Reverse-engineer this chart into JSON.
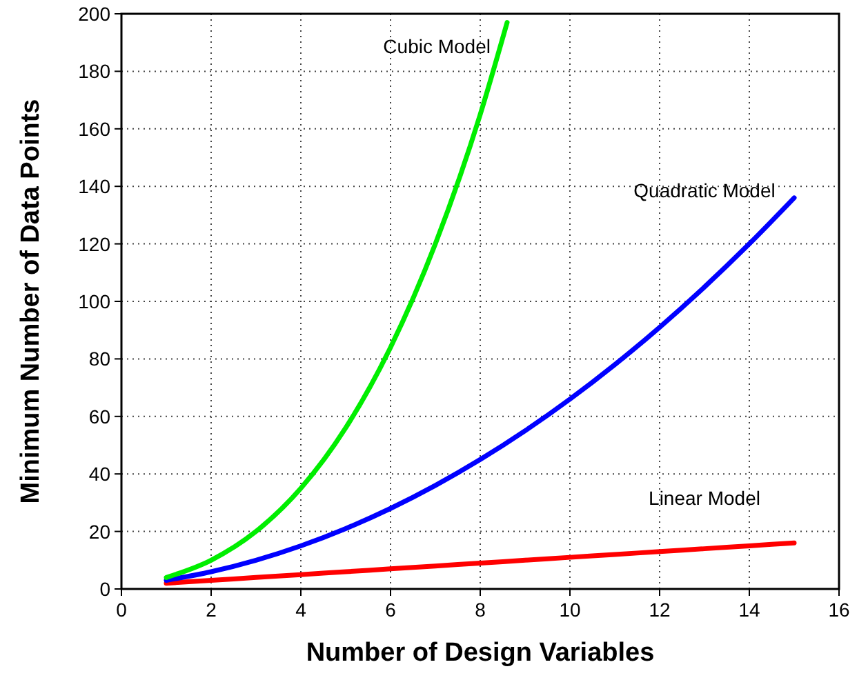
{
  "chart_data": {
    "type": "line",
    "xlabel": "Number of Design Variables",
    "ylabel": "Minimum Number of Data Points",
    "xlim": [
      0,
      16
    ],
    "xticks": [
      0,
      2,
      4,
      6,
      8,
      10,
      12,
      14,
      16
    ],
    "ylim": [
      0,
      200
    ],
    "yticks": [
      0,
      20,
      40,
      60,
      80,
      100,
      120,
      140,
      160,
      180,
      200
    ],
    "grid": true,
    "marker": "none",
    "line_style": "solid",
    "series": [
      {
        "name": "Linear Model",
        "color": "#ff0000",
        "x": [
          1,
          2,
          3,
          4,
          5,
          6,
          7,
          8,
          9,
          10,
          11,
          12,
          13,
          14,
          15
        ],
        "values": [
          2,
          3,
          4,
          5,
          6,
          7,
          8,
          9,
          10,
          11,
          12,
          13,
          14,
          15,
          16
        ]
      },
      {
        "name": "Quadratic Model",
        "color": "#0000ff",
        "x": [
          1,
          2,
          3,
          4,
          5,
          6,
          7,
          8,
          9,
          10,
          11,
          12,
          13,
          14,
          15
        ],
        "values": [
          3,
          6,
          10,
          15,
          21,
          28,
          36,
          45,
          55,
          66,
          78,
          91,
          105,
          120,
          136
        ]
      },
      {
        "name": "Cubic Model",
        "color": "#00ee00",
        "x": [
          1,
          2,
          3,
          4,
          5,
          6,
          7,
          8,
          8.6
        ],
        "values": [
          4,
          10,
          20,
          35,
          56,
          84,
          120,
          165,
          197
        ]
      }
    ]
  }
}
